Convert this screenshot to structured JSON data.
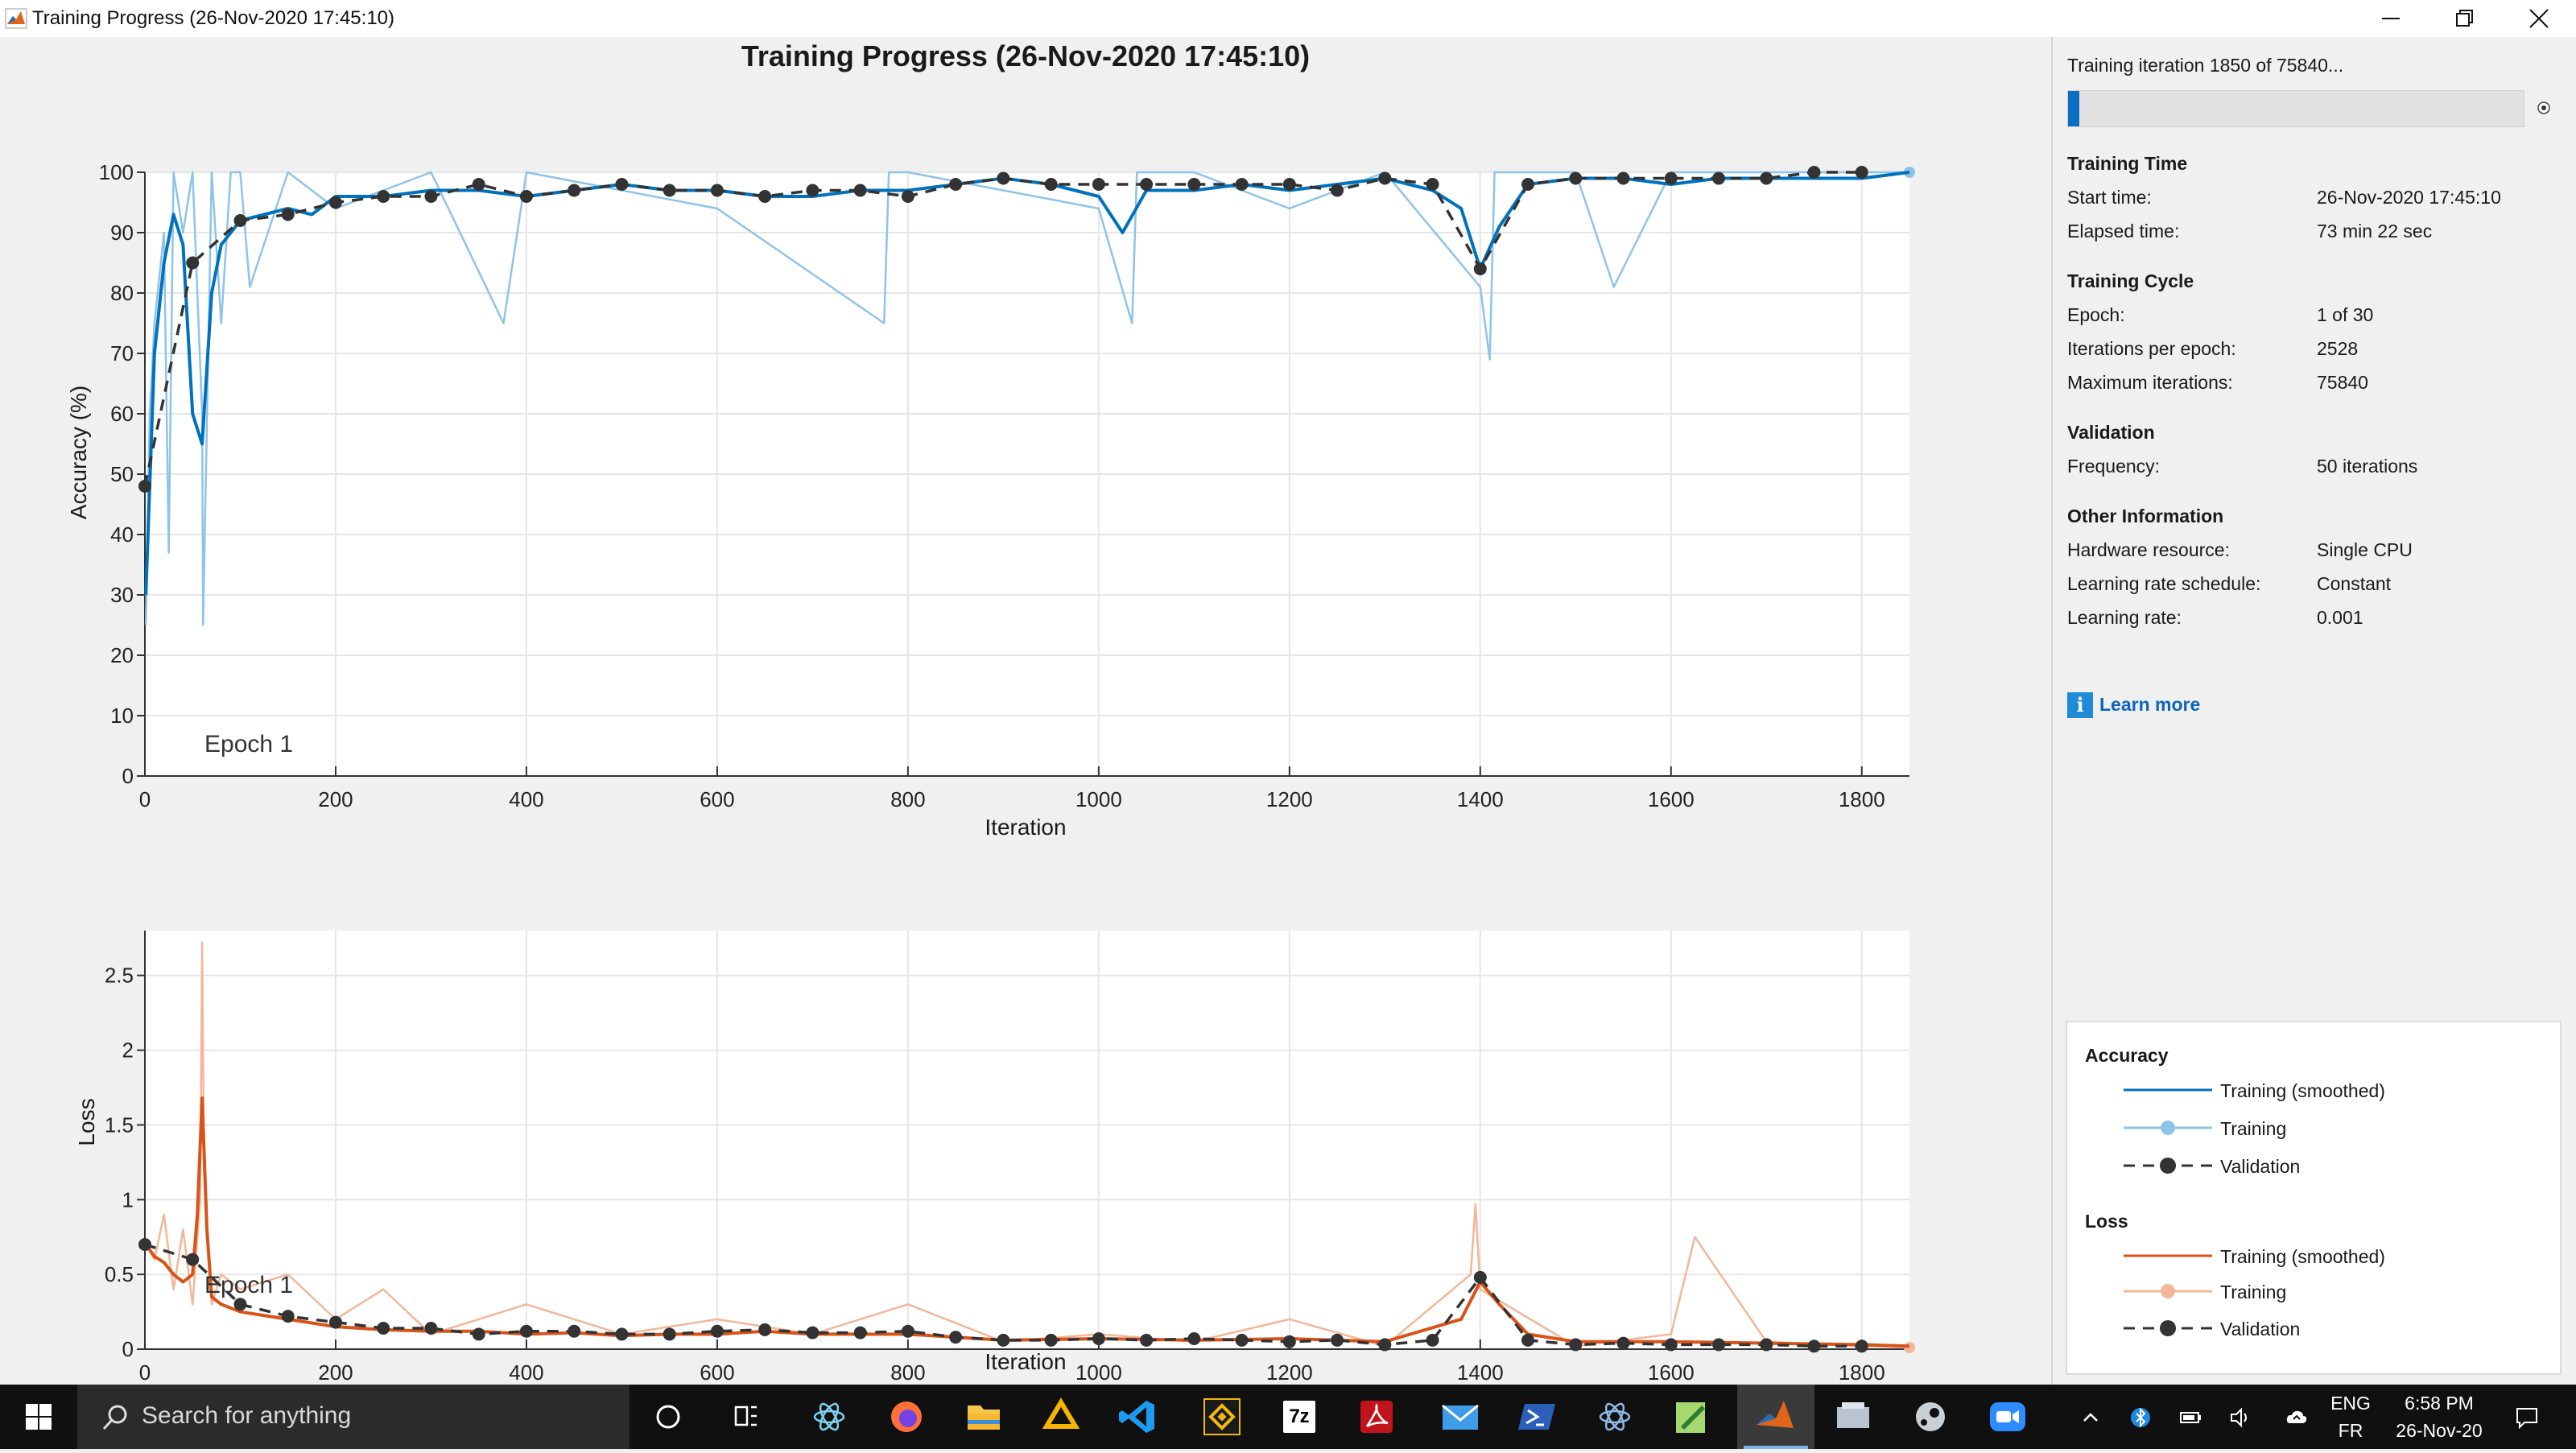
{
  "window": {
    "title": "Training Progress (26-Nov-2020 17:45:10)",
    "controls": [
      "minimize",
      "restore",
      "close"
    ]
  },
  "plot": {
    "title": "Training Progress (26-Nov-2020 17:45:10)",
    "epoch_label_accuracy": "Epoch 1",
    "epoch_label_loss": "Epoch 1"
  },
  "chart_data": [
    {
      "type": "line",
      "name": "accuracy",
      "xlabel": "Iteration",
      "ylabel": "Accuracy (%)",
      "xlim": [
        0,
        1850
      ],
      "ylim": [
        0,
        100
      ],
      "xticks": [
        0,
        200,
        400,
        600,
        800,
        1000,
        1200,
        1400,
        1600,
        1800
      ],
      "yticks": [
        0,
        10,
        20,
        30,
        40,
        50,
        60,
        70,
        80,
        90,
        100
      ],
      "grid": true,
      "series": [
        {
          "name": "Training (smoothed)",
          "color": "#0072bd",
          "x": [
            1,
            10,
            20,
            30,
            40,
            50,
            60,
            70,
            80,
            90,
            100,
            125,
            150,
            175,
            200,
            250,
            300,
            350,
            400,
            450,
            500,
            550,
            600,
            650,
            700,
            750,
            800,
            850,
            900,
            950,
            1000,
            1025,
            1050,
            1100,
            1150,
            1200,
            1250,
            1300,
            1350,
            1380,
            1400,
            1420,
            1450,
            1500,
            1550,
            1600,
            1650,
            1700,
            1750,
            1800,
            1850
          ],
          "values": [
            30,
            70,
            85,
            93,
            88,
            60,
            55,
            80,
            88,
            90,
            92,
            93,
            94,
            93,
            96,
            96,
            97,
            97,
            96,
            97,
            98,
            97,
            97,
            96,
            96,
            97,
            97,
            98,
            99,
            98,
            96,
            90,
            97,
            97,
            98,
            97,
            98,
            99,
            97,
            94,
            84,
            91,
            98,
            99,
            99,
            98,
            99,
            99,
            99,
            99,
            100
          ]
        },
        {
          "name": "Training",
          "color": "#8fc3e8",
          "x": [
            1,
            5,
            10,
            20,
            25,
            30,
            40,
            50,
            60,
            61,
            70,
            80,
            90,
            100,
            110,
            150,
            200,
            300,
            376,
            400,
            600,
            775,
            780,
            800,
            1000,
            1035,
            1040,
            1100,
            1200,
            1300,
            1400,
            1410,
            1415,
            1500,
            1540,
            1600,
            1700,
            1800,
            1850
          ],
          "values": [
            25,
            60,
            75,
            90,
            37,
            100,
            90,
            100,
            60,
            25,
            100,
            75,
            100,
            100,
            81,
            100,
            94,
            100,
            75,
            100,
            94,
            75,
            100,
            100,
            94,
            75,
            100,
            100,
            94,
            100,
            81,
            69,
            100,
            100,
            81,
            100,
            100,
            100,
            100
          ]
        },
        {
          "name": "Validation",
          "color": "#333333",
          "x": [
            0,
            50,
            100,
            150,
            200,
            250,
            300,
            350,
            400,
            450,
            500,
            550,
            600,
            650,
            700,
            750,
            800,
            850,
            900,
            950,
            1000,
            1050,
            1100,
            1150,
            1200,
            1250,
            1300,
            1350,
            1400,
            1450,
            1500,
            1550,
            1600,
            1650,
            1700,
            1750,
            1800
          ],
          "values": [
            48,
            85,
            92,
            93,
            95,
            96,
            96,
            98,
            96,
            97,
            98,
            97,
            97,
            96,
            97,
            97,
            96,
            98,
            99,
            98,
            98,
            98,
            98,
            98,
            98,
            97,
            99,
            98,
            84,
            98,
            99,
            99,
            99,
            99,
            99,
            100,
            100
          ]
        }
      ]
    },
    {
      "type": "line",
      "name": "loss",
      "xlabel": "Iteration",
      "ylabel": "Loss",
      "xlim": [
        0,
        1850
      ],
      "ylim": [
        0,
        2.8
      ],
      "xticks": [
        0,
        200,
        400,
        600,
        800,
        1000,
        1200,
        1400,
        1600,
        1800
      ],
      "yticks": [
        0,
        0.5,
        1,
        1.5,
        2,
        2.5
      ],
      "grid": true,
      "series": [
        {
          "name": "Training (smoothed)",
          "color": "#d95319",
          "x": [
            1,
            10,
            20,
            30,
            40,
            50,
            55,
            60,
            65,
            70,
            80,
            100,
            150,
            200,
            250,
            300,
            350,
            400,
            450,
            500,
            550,
            600,
            650,
            700,
            750,
            800,
            850,
            900,
            1000,
            1100,
            1200,
            1300,
            1380,
            1400,
            1420,
            1450,
            1500,
            1600,
            1700,
            1800,
            1850
          ],
          "values": [
            0.7,
            0.62,
            0.58,
            0.5,
            0.45,
            0.5,
            0.9,
            1.68,
            0.8,
            0.35,
            0.3,
            0.25,
            0.2,
            0.15,
            0.13,
            0.12,
            0.12,
            0.1,
            0.11,
            0.09,
            0.1,
            0.1,
            0.12,
            0.1,
            0.1,
            0.1,
            0.08,
            0.06,
            0.07,
            0.06,
            0.07,
            0.05,
            0.2,
            0.45,
            0.3,
            0.1,
            0.05,
            0.05,
            0.04,
            0.03,
            0.02
          ]
        },
        {
          "name": "Training",
          "color": "#f2b798",
          "x": [
            1,
            10,
            20,
            30,
            40,
            50,
            58,
            60,
            62,
            70,
            80,
            100,
            150,
            200,
            250,
            300,
            400,
            500,
            600,
            700,
            800,
            900,
            1000,
            1100,
            1200,
            1300,
            1390,
            1395,
            1400,
            1500,
            1600,
            1625,
            1700,
            1800,
            1850
          ],
          "values": [
            0.7,
            0.6,
            0.9,
            0.4,
            0.8,
            0.3,
            1.0,
            2.72,
            1.2,
            0.3,
            0.5,
            0.4,
            0.5,
            0.2,
            0.4,
            0.1,
            0.3,
            0.1,
            0.2,
            0.1,
            0.3,
            0.05,
            0.1,
            0.05,
            0.2,
            0.02,
            0.5,
            0.97,
            0.4,
            0.02,
            0.1,
            0.75,
            0.05,
            0.02,
            0.01
          ]
        },
        {
          "name": "Validation",
          "color": "#333333",
          "x": [
            0,
            50,
            100,
            150,
            200,
            250,
            300,
            350,
            400,
            450,
            500,
            550,
            600,
            650,
            700,
            750,
            800,
            850,
            900,
            950,
            1000,
            1050,
            1100,
            1150,
            1200,
            1250,
            1300,
            1350,
            1400,
            1450,
            1500,
            1550,
            1600,
            1650,
            1700,
            1750,
            1800
          ],
          "values": [
            0.7,
            0.6,
            0.3,
            0.22,
            0.18,
            0.14,
            0.14,
            0.1,
            0.12,
            0.12,
            0.1,
            0.1,
            0.12,
            0.13,
            0.11,
            0.11,
            0.12,
            0.08,
            0.06,
            0.06,
            0.07,
            0.06,
            0.07,
            0.06,
            0.05,
            0.06,
            0.03,
            0.06,
            0.48,
            0.06,
            0.03,
            0.04,
            0.03,
            0.03,
            0.03,
            0.02,
            0.02
          ]
        }
      ]
    }
  ],
  "panel": {
    "progress_text": "Training iteration 1850 of 75840...",
    "progress_fraction": 0.0244,
    "sections": {
      "time": {
        "title": "Training Time",
        "rows": [
          {
            "label": "Start time:",
            "value": "26-Nov-2020 17:45:10"
          },
          {
            "label": "Elapsed time:",
            "value": "73 min 22 sec"
          }
        ]
      },
      "cycle": {
        "title": "Training Cycle",
        "rows": [
          {
            "label": "Epoch:",
            "value": "1 of 30"
          },
          {
            "label": "Iterations per epoch:",
            "value": "2528"
          },
          {
            "label": "Maximum iterations:",
            "value": "75840"
          }
        ]
      },
      "validation": {
        "title": "Validation",
        "rows": [
          {
            "label": "Frequency:",
            "value": "50 iterations"
          }
        ]
      },
      "other": {
        "title": "Other Information",
        "rows": [
          {
            "label": "Hardware resource:",
            "value": "Single CPU"
          },
          {
            "label": "Learning rate schedule:",
            "value": "Constant"
          },
          {
            "label": "Learning rate:",
            "value": "0.001"
          }
        ]
      }
    },
    "learn_more": "Learn more",
    "legend": {
      "accuracy_title": "Accuracy",
      "loss_title": "Loss",
      "accuracy_items": [
        "Training (smoothed)",
        "Training",
        "Validation"
      ],
      "loss_items": [
        "Training (smoothed)",
        "Training",
        "Validation"
      ],
      "colors": {
        "acc_smoothed": "#0072bd",
        "acc_training": "#8fc3e8",
        "loss_smoothed": "#d95319",
        "loss_training": "#f2b798",
        "validation": "#333333"
      }
    }
  },
  "taskbar": {
    "search_placeholder": "Search for anything",
    "apps": [
      "cortana-icon",
      "task-view-icon",
      "electron-app-icon",
      "firefox-icon",
      "file-explorer-icon",
      "google-drive-icon",
      "vscode-icon",
      "binance-icon",
      "7zip-icon",
      "acrobat-icon",
      "mail-icon",
      "powershell-icon",
      "electron-app-2-icon",
      "notepad-plus-icon",
      "matlab-icon",
      "network-app-icon",
      "steam-icon",
      "zoom-icon"
    ],
    "seven_zip_label": "7z",
    "lang_top": "ENG",
    "lang_bottom": "FR",
    "time": "6:58 PM",
    "date": "26-Nov-20"
  }
}
